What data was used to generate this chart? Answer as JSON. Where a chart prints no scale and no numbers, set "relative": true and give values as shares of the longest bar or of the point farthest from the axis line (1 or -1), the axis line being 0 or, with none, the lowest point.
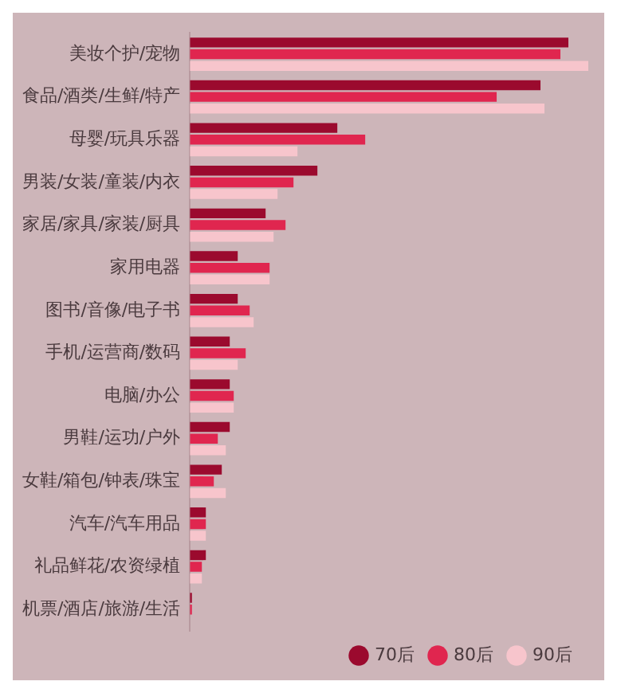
{
  "chart_data": {
    "type": "bar",
    "orientation": "horizontal",
    "relative": true,
    "legend": "bottom right",
    "grid": false,
    "categories": [
      "美妆个护/宠物",
      "食品/酒类/生鲜/特产",
      "母婴/玩具乐器",
      "男装/女装/童装/内衣",
      "家居/家具/家装/厨具",
      "家用电器",
      "图书/音像/电子书",
      "手机/运营商/数码",
      "电脑/办公",
      "男鞋/运功/户外",
      "女鞋/箱包/钟表/珠宝",
      "汽车/汽车用品",
      "礼品鲜花/农资绿植",
      "机票/酒店/旅游/生活"
    ],
    "series": [
      {
        "name": "70后",
        "color": "#9b0a2e",
        "values": [
          0.95,
          0.88,
          0.37,
          0.32,
          0.19,
          0.12,
          0.12,
          0.1,
          0.1,
          0.1,
          0.08,
          0.04,
          0.04,
          0.005
        ]
      },
      {
        "name": "80后",
        "color": "#e0264f",
        "values": [
          0.93,
          0.77,
          0.44,
          0.26,
          0.24,
          0.2,
          0.15,
          0.14,
          0.11,
          0.07,
          0.06,
          0.04,
          0.03,
          0.005
        ]
      },
      {
        "name": "90后",
        "color": "#f7c5cc",
        "values": [
          1,
          0.89,
          0.27,
          0.22,
          0.21,
          0.2,
          0.16,
          0.12,
          0.11,
          0.09,
          0.09,
          0.04,
          0.03,
          null
        ]
      }
    ]
  }
}
